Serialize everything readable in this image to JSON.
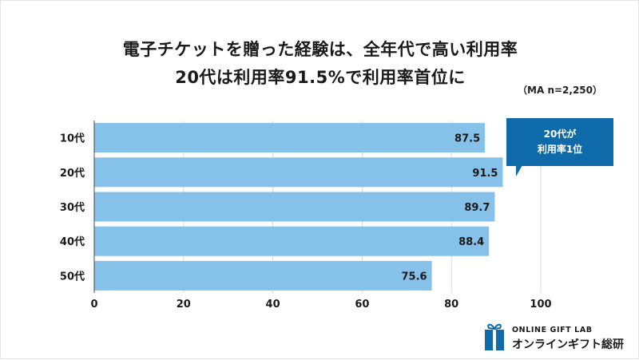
{
  "header": {
    "title_line1": "電子チケットを贈った経験は、全年代で高い利用率",
    "title_line2": "20代は利用率91.5%で利用率首位に",
    "sample_note": "（MA n=2,250）"
  },
  "callout": {
    "line1": "20代が",
    "line2": "利用率1位"
  },
  "brand": {
    "top_text": "ONLINE GIFT LAB",
    "bottom_text": "オンラインギフト総研",
    "icon": "gift-box-icon"
  },
  "colors": {
    "bar": "#85c1e9",
    "grid": "#d9d9d9",
    "callout": "#0f6aa9",
    "logo": "#0f6aa9"
  },
  "chart_data": {
    "type": "bar",
    "orientation": "horizontal",
    "categories": [
      "10代",
      "20代",
      "30代",
      "40代",
      "50代"
    ],
    "values": [
      87.5,
      91.5,
      89.7,
      88.4,
      75.6
    ],
    "xticks": [
      0,
      20,
      40,
      60,
      80,
      100
    ],
    "xlim": [
      0,
      100
    ],
    "grid": "vertical",
    "title": "電子チケットを贈った経験は、全年代で高い利用率",
    "xlabel": "",
    "ylabel": ""
  }
}
